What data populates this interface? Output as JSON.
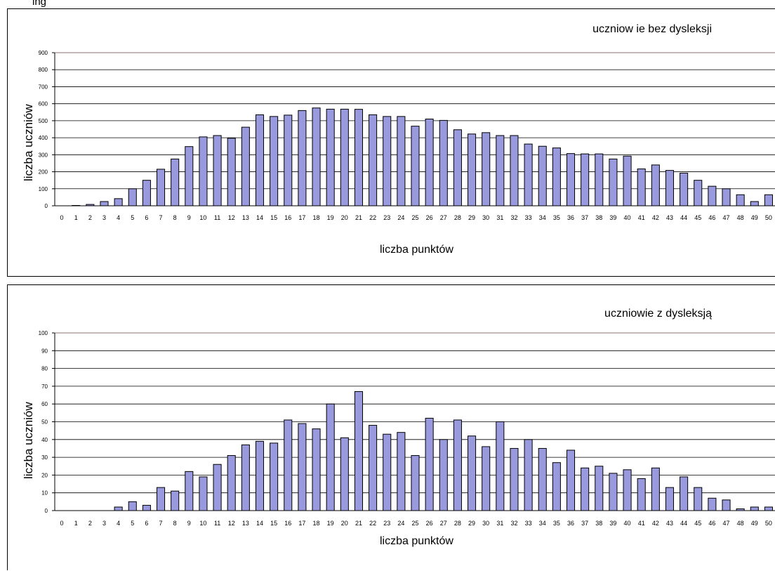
{
  "top_text": "ing",
  "chart_data": [
    {
      "type": "bar",
      "title": "uczniow ie bez dysleksji",
      "xlabel": "liczba punktów",
      "ylabel": "liczba uczniów",
      "ylim": [
        0,
        900
      ],
      "yticks": [
        0,
        100,
        200,
        300,
        400,
        500,
        600,
        700,
        800,
        900
      ],
      "grid": true,
      "categories": [
        "0",
        "1",
        "2",
        "3",
        "4",
        "5",
        "6",
        "7",
        "8",
        "9",
        "10",
        "11",
        "12",
        "13",
        "14",
        "15",
        "16",
        "17",
        "18",
        "19",
        "20",
        "21",
        "22",
        "23",
        "24",
        "25",
        "26",
        "27",
        "28",
        "29",
        "30",
        "31",
        "32",
        "33",
        "34",
        "35",
        "36",
        "37",
        "38",
        "39",
        "40",
        "41",
        "42",
        "43",
        "44",
        "45",
        "46",
        "47",
        "48",
        "49",
        "50"
      ],
      "values": [
        0,
        2,
        8,
        25,
        42,
        100,
        150,
        215,
        275,
        348,
        405,
        413,
        397,
        462,
        535,
        525,
        533,
        560,
        575,
        568,
        568,
        567,
        535,
        525,
        525,
        468,
        510,
        502,
        447,
        422,
        430,
        413,
        413,
        363,
        350,
        340,
        307,
        305,
        305,
        275,
        292,
        217,
        240,
        208,
        192,
        150,
        115,
        100,
        65,
        25,
        65
      ]
    },
    {
      "type": "bar",
      "title": "uczniowie z dysleksją",
      "xlabel": "liczba punktów",
      "ylabel": "liczba uczniów",
      "ylim": [
        0,
        100
      ],
      "yticks": [
        0,
        10,
        20,
        30,
        40,
        50,
        60,
        70,
        80,
        90,
        100
      ],
      "grid": true,
      "categories": [
        "0",
        "1",
        "2",
        "3",
        "4",
        "5",
        "6",
        "7",
        "8",
        "9",
        "10",
        "11",
        "12",
        "13",
        "14",
        "15",
        "16",
        "17",
        "18",
        "19",
        "20",
        "21",
        "22",
        "23",
        "24",
        "25",
        "26",
        "27",
        "28",
        "29",
        "30",
        "31",
        "32",
        "33",
        "34",
        "35",
        "36",
        "37",
        "38",
        "39",
        "40",
        "41",
        "42",
        "43",
        "44",
        "45",
        "46",
        "47",
        "48",
        "49",
        "50"
      ],
      "values": [
        0,
        0,
        0,
        0,
        2,
        5,
        3,
        13,
        11,
        22,
        19,
        26,
        31,
        37,
        39,
        38,
        51,
        49,
        46,
        60,
        41,
        67,
        48,
        43,
        44,
        31,
        52,
        40,
        51,
        42,
        36,
        50,
        35,
        40,
        35,
        27,
        34,
        24,
        25,
        21,
        23,
        18,
        24,
        13,
        19,
        13,
        7,
        6,
        1,
        2,
        2
      ]
    }
  ],
  "colors": {
    "bar_fill": "#9999dd",
    "bar_stroke": "#000000",
    "plot_border": "#8c7070",
    "grid": "#000000"
  }
}
